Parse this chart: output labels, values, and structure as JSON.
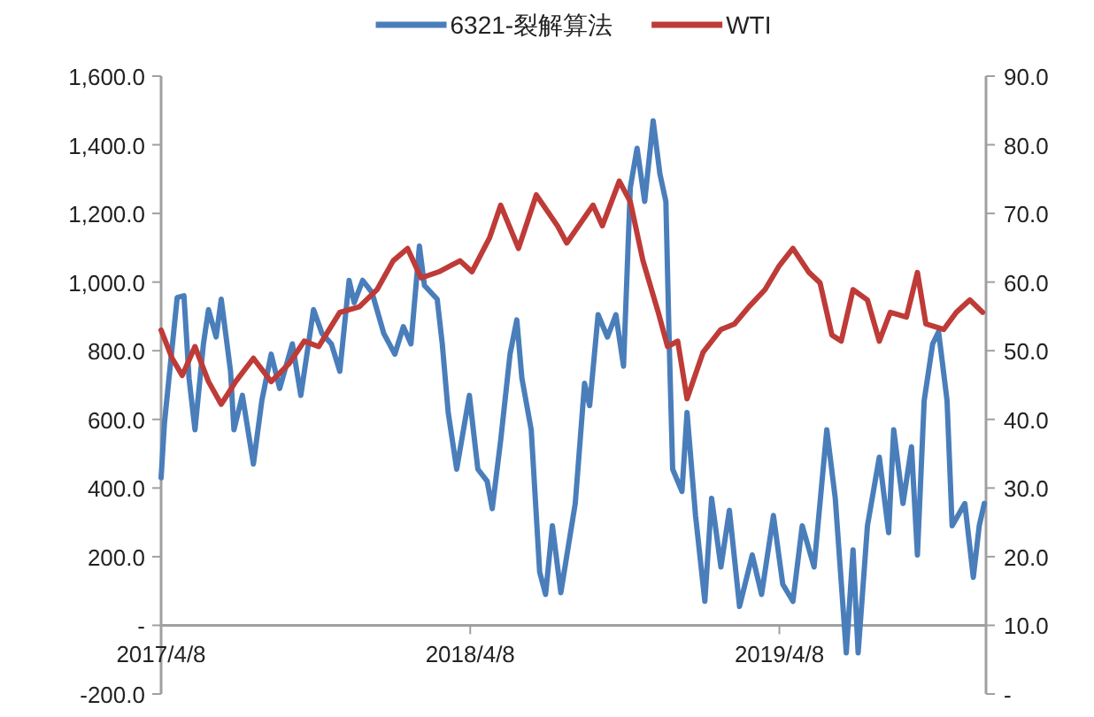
{
  "chart_data": {
    "type": "line",
    "xlim": [
      "2017-04-08",
      "2019-12-08"
    ],
    "xticks": [
      {
        "value": "2017-04-08",
        "label": "2017/4/8"
      },
      {
        "value": "2018-04-08",
        "label": "2018/4/8"
      },
      {
        "value": "2019-04-08",
        "label": "2019/4/8"
      }
    ],
    "ylim": [
      -200,
      1600
    ],
    "yticks": [
      {
        "value": -200,
        "label": "-200.0"
      },
      {
        "value": 0,
        "label": "-"
      },
      {
        "value": 200,
        "label": "200.0"
      },
      {
        "value": 400,
        "label": "400.0"
      },
      {
        "value": 600,
        "label": "600.0"
      },
      {
        "value": 800,
        "label": "800.0"
      },
      {
        "value": 1000,
        "label": "1,000.0"
      },
      {
        "value": 1200,
        "label": "1,200.0"
      },
      {
        "value": 1400,
        "label": "1,400.0"
      },
      {
        "value": 1600,
        "label": "1,600.0"
      }
    ],
    "y2lim": [
      0,
      90
    ],
    "y2ticks": [
      {
        "value": 0,
        "label": "-"
      },
      {
        "value": 10,
        "label": "10.0"
      },
      {
        "value": 20,
        "label": "20.0"
      },
      {
        "value": 30,
        "label": "30.0"
      },
      {
        "value": 40,
        "label": "40.0"
      },
      {
        "value": 50,
        "label": "50.0"
      },
      {
        "value": 60,
        "label": "60.0"
      },
      {
        "value": 70,
        "label": "70.0"
      },
      {
        "value": 80,
        "label": "80.0"
      },
      {
        "value": 90,
        "label": "90.0"
      }
    ],
    "grid": false,
    "legend": "top",
    "series": [
      {
        "name": "6321-裂解算法",
        "color": "#4a7ebb",
        "x": [
          "2017-04-08",
          "2017-04-12",
          "2017-04-27",
          "2017-05-05",
          "2017-05-11",
          "2017-05-18",
          "2017-05-28",
          "2017-06-03",
          "2017-06-12",
          "2017-06-18",
          "2017-06-29",
          "2017-07-03",
          "2017-07-13",
          "2017-07-26",
          "2017-08-05",
          "2017-08-16",
          "2017-08-26",
          "2017-09-10",
          "2017-09-20",
          "2017-10-05",
          "2017-10-15",
          "2017-10-26",
          "2017-11-05",
          "2017-11-16",
          "2017-11-22",
          "2017-12-02",
          "2017-12-13",
          "2017-12-27",
          "2018-01-09",
          "2018-01-19",
          "2018-01-28",
          "2018-02-07",
          "2018-02-13",
          "2018-02-28",
          "2018-03-06",
          "2018-03-13",
          "2018-03-23",
          "2018-04-07",
          "2018-04-17",
          "2018-04-28",
          "2018-05-04",
          "2018-05-14",
          "2018-05-25",
          "2018-06-02",
          "2018-06-08",
          "2018-06-19",
          "2018-06-29",
          "2018-07-06",
          "2018-07-14",
          "2018-07-24",
          "2018-08-10",
          "2018-08-21",
          "2018-08-27",
          "2018-09-06",
          "2018-09-17",
          "2018-09-27",
          "2018-10-06",
          "2018-10-14",
          "2018-10-22",
          "2018-10-31",
          "2018-11-10",
          "2018-11-18",
          "2018-11-25",
          "2018-11-29",
          "2018-12-03",
          "2018-12-14",
          "2018-12-20",
          "2018-12-30",
          "2019-01-10",
          "2019-01-18",
          "2019-01-29",
          "2019-02-08",
          "2019-02-20",
          "2019-03-07",
          "2019-03-18",
          "2019-04-01",
          "2019-04-12",
          "2019-04-24",
          "2019-05-05",
          "2019-05-19",
          "2019-06-03",
          "2019-06-13",
          "2019-06-26",
          "2019-07-04",
          "2019-07-10",
          "2019-07-21",
          "2019-08-04",
          "2019-08-15",
          "2019-08-21",
          "2019-09-01",
          "2019-09-11",
          "2019-09-18",
          "2019-09-26",
          "2019-10-06",
          "2019-10-13",
          "2019-10-23",
          "2019-10-29",
          "2019-11-13",
          "2019-11-23",
          "2019-11-30",
          "2019-12-06"
        ],
        "values": [
          430,
          590,
          955,
          960,
          720,
          570,
          820,
          920,
          840,
          950,
          740,
          570,
          670,
          470,
          655,
          790,
          690,
          820,
          670,
          920,
          850,
          820,
          740,
          1005,
          940,
          1005,
          970,
          850,
          790,
          870,
          820,
          1105,
          990,
          950,
          820,
          620,
          455,
          670,
          455,
          420,
          340,
          540,
          790,
          890,
          720,
          570,
          155,
          90,
          290,
          95,
          355,
          705,
          640,
          905,
          840,
          905,
          755,
          1275,
          1390,
          1235,
          1470,
          1315,
          1235,
          820,
          455,
          390,
          620,
          320,
          70,
          370,
          170,
          335,
          55,
          205,
          90,
          320,
          120,
          70,
          290,
          170,
          570,
          370,
          -80,
          220,
          -80,
          290,
          490,
          270,
          570,
          355,
          520,
          205,
          655,
          820,
          855,
          655,
          290,
          355,
          140,
          290,
          355
        ]
      },
      {
        "name": "WTI",
        "color": "#be3b37",
        "axis": "y2",
        "x": [
          "2017-04-08",
          "2017-04-21",
          "2017-05-03",
          "2017-05-18",
          "2017-06-03",
          "2017-06-18",
          "2017-07-05",
          "2017-07-26",
          "2017-08-16",
          "2017-09-06",
          "2017-09-24",
          "2017-10-11",
          "2017-11-05",
          "2017-11-28",
          "2017-12-19",
          "2018-01-07",
          "2018-01-24",
          "2018-02-09",
          "2018-03-02",
          "2018-03-27",
          "2018-04-10",
          "2018-05-01",
          "2018-05-14",
          "2018-06-04",
          "2018-06-25",
          "2018-07-20",
          "2018-07-31",
          "2018-08-31",
          "2018-09-11",
          "2018-10-01",
          "2018-10-14",
          "2018-10-29",
          "2018-11-16",
          "2018-11-27",
          "2018-12-09",
          "2018-12-20",
          "2019-01-08",
          "2019-01-29",
          "2019-02-14",
          "2019-03-03",
          "2019-03-22",
          "2019-04-08",
          "2019-04-24",
          "2019-05-13",
          "2019-05-26",
          "2019-06-09",
          "2019-06-20",
          "2019-07-04",
          "2019-07-21",
          "2019-08-04",
          "2019-08-17",
          "2019-09-05",
          "2019-09-18",
          "2019-09-28",
          "2019-10-19",
          "2019-11-03",
          "2019-11-19",
          "2019-12-04"
        ],
        "values": [
          53.0,
          48.9,
          46.4,
          50.6,
          45.5,
          42.2,
          45.5,
          48.9,
          45.5,
          48.1,
          51.4,
          50.6,
          55.6,
          56.4,
          58.9,
          63.1,
          64.9,
          60.6,
          61.5,
          63.1,
          61.5,
          66.5,
          71.2,
          64.9,
          72.7,
          68.2,
          65.7,
          71.2,
          68.2,
          74.7,
          71.7,
          63.1,
          55.6,
          50.6,
          51.4,
          43.0,
          49.8,
          53.1,
          53.9,
          56.4,
          58.9,
          62.4,
          64.9,
          61.4,
          59.9,
          52.3,
          51.4,
          58.9,
          57.4,
          51.4,
          55.6,
          54.9,
          61.4,
          53.9,
          53.1,
          55.6,
          57.4,
          55.6
        ]
      }
    ]
  }
}
